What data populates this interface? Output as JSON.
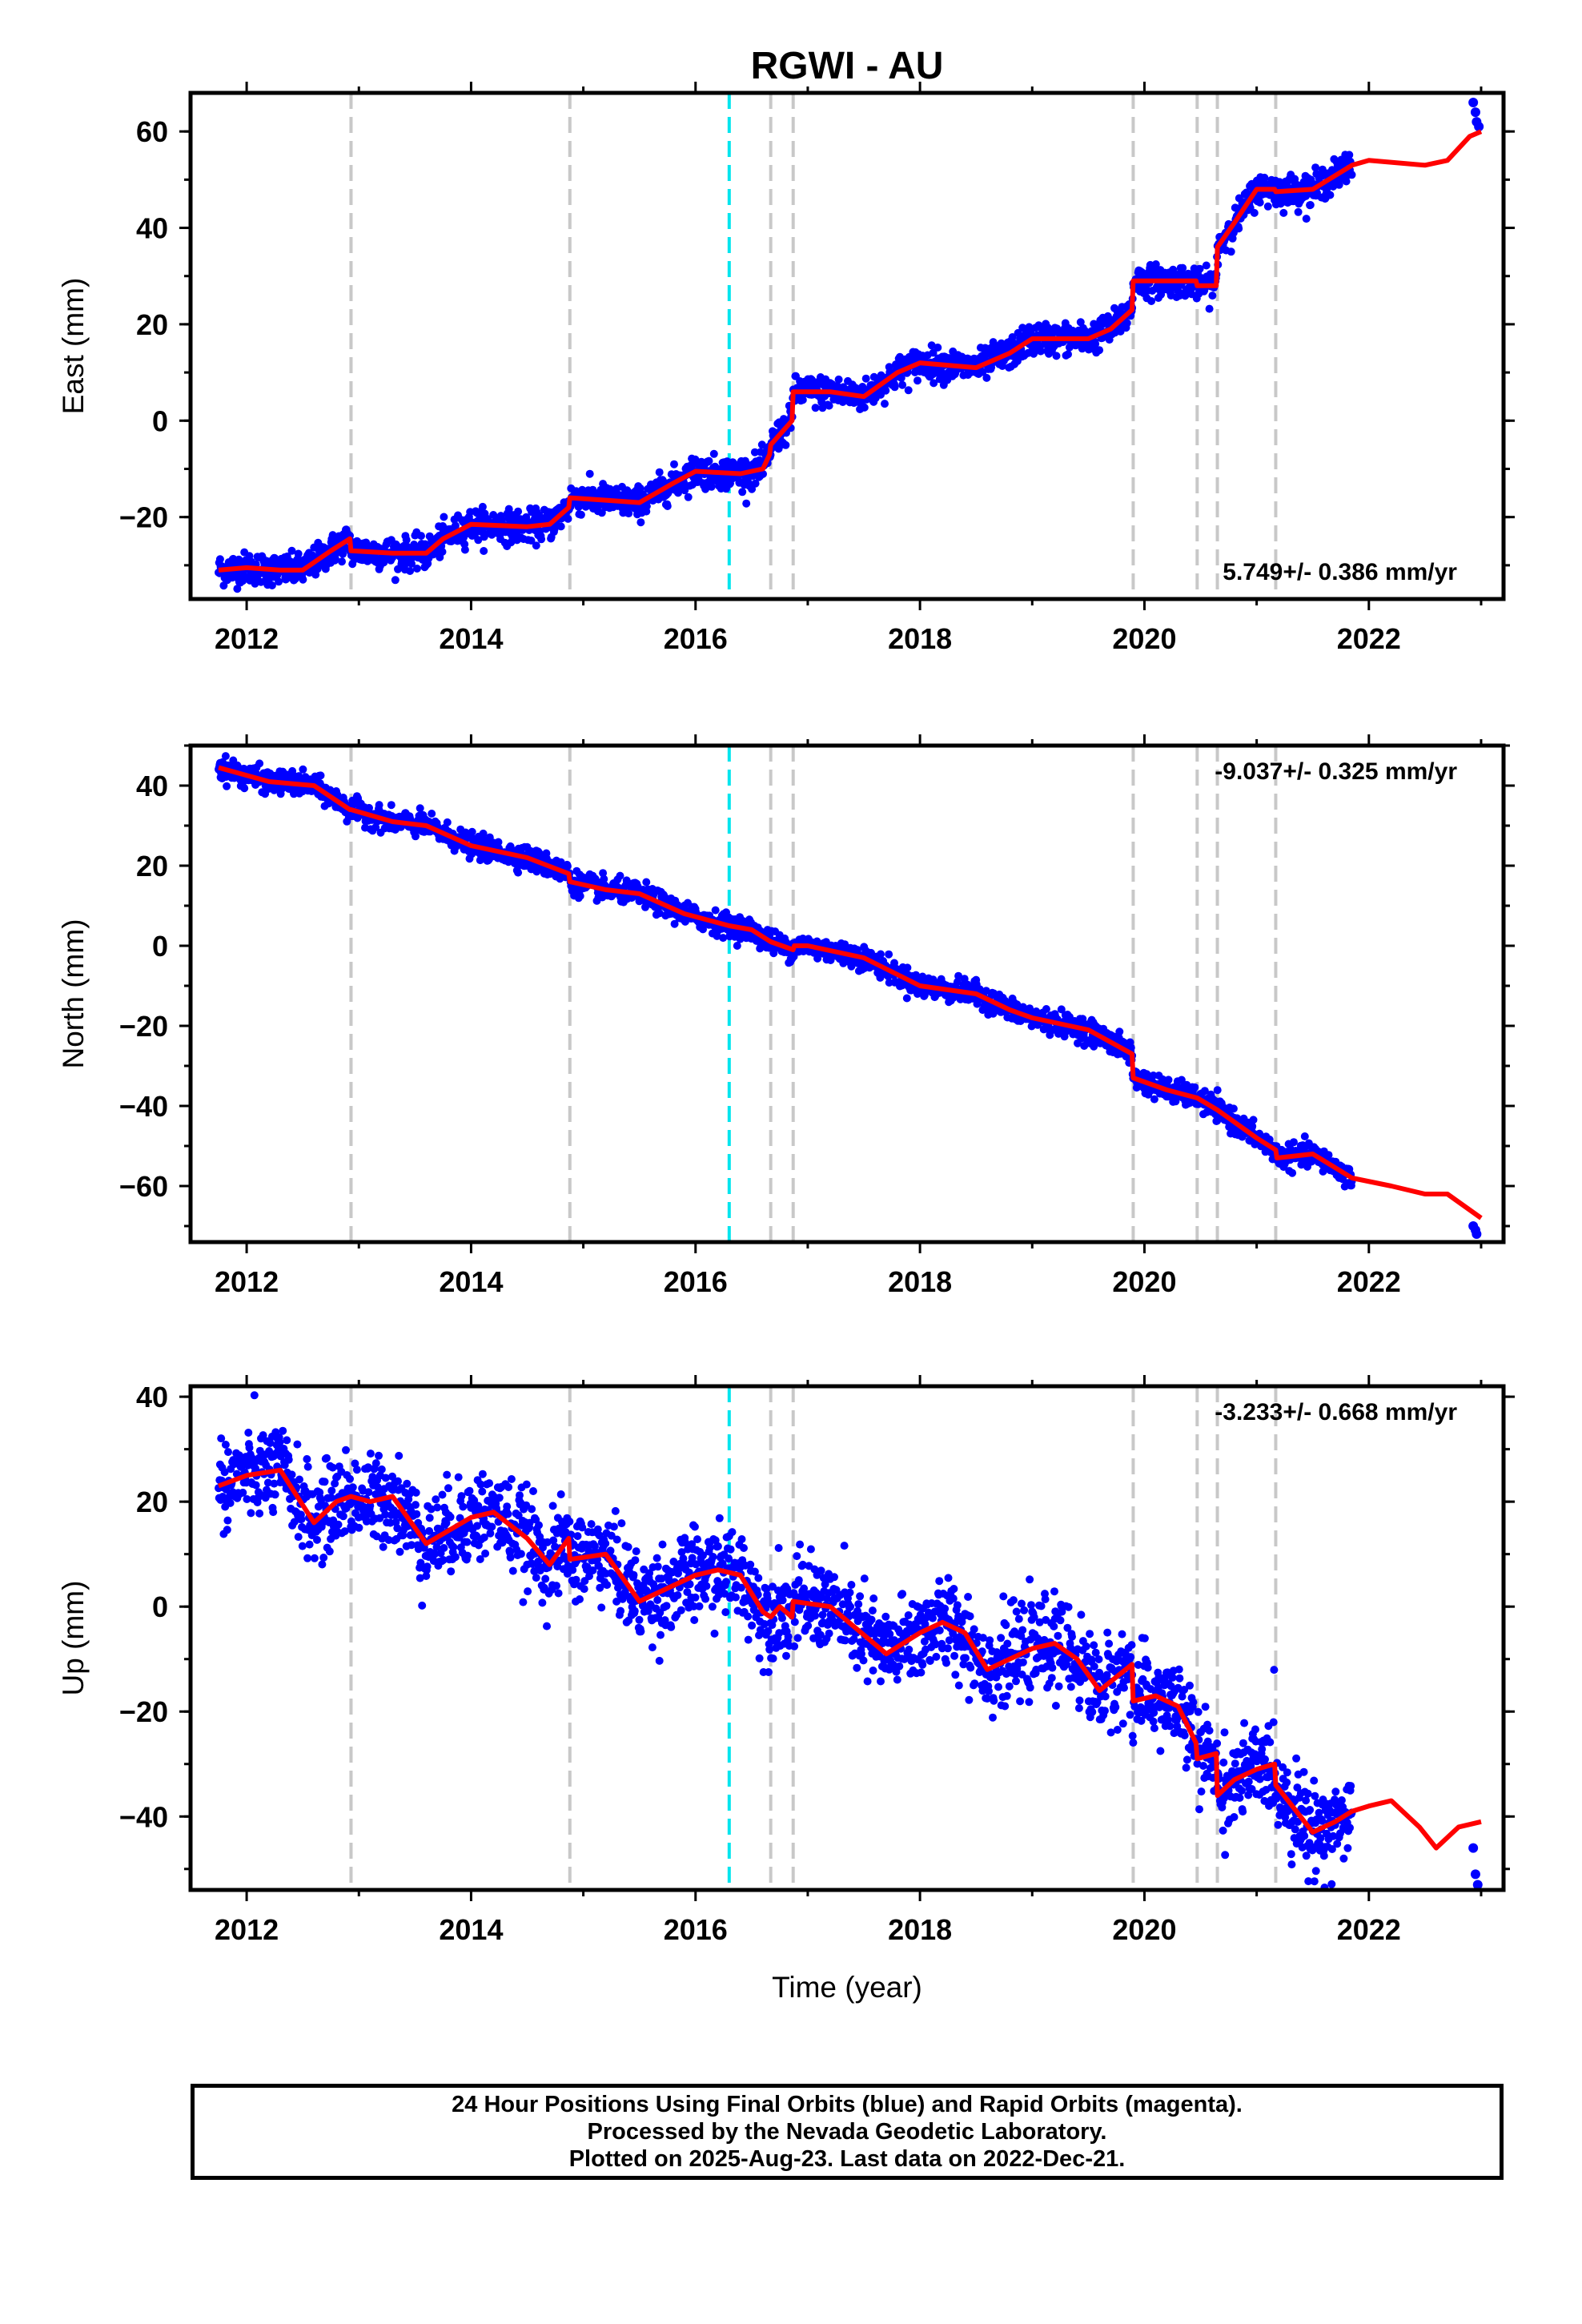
{
  "chart_data": {
    "type": "scatter",
    "title": "RGWI - AU",
    "xlabel": "Time (year)",
    "xlim": [
      2011.5,
      2023.2
    ],
    "xticks": [
      2012,
      2014,
      2016,
      2018,
      2020,
      2022
    ],
    "colors": {
      "data": "#0000ff",
      "model": "#ff0000",
      "marker": "#c8c8c8",
      "marker_highlight": "#00e5ee"
    },
    "event_lines": [
      2012.93,
      2014.88,
      2016.3,
      2016.67,
      2016.87,
      2019.9,
      2020.47,
      2020.65,
      2021.17
    ],
    "highlight_event": 2016.3,
    "data_gap": [
      2021.85,
      2022.9
    ],
    "panels": [
      {
        "component": "east",
        "ylabel": "East (mm)",
        "ylim": [
          -37,
          68
        ],
        "yticks": [
          -20,
          0,
          20,
          40,
          60
        ],
        "rate": "5.749+/- 0.386 mm/yr",
        "rate_position": "bottom-right",
        "scatter_noise": 1.6,
        "model_line": [
          [
            2011.75,
            -31
          ],
          [
            2012.0,
            -30.5
          ],
          [
            2012.3,
            -31
          ],
          [
            2012.5,
            -31
          ],
          [
            2012.75,
            -27
          ],
          [
            2012.92,
            -24.5
          ],
          [
            2012.93,
            -27
          ],
          [
            2013.3,
            -27.5
          ],
          [
            2013.6,
            -27.5
          ],
          [
            2013.75,
            -24.5
          ],
          [
            2014.0,
            -21.5
          ],
          [
            2014.5,
            -22
          ],
          [
            2014.7,
            -21.5
          ],
          [
            2014.87,
            -18
          ],
          [
            2014.88,
            -16
          ],
          [
            2015.2,
            -16.5
          ],
          [
            2015.5,
            -17
          ],
          [
            2015.8,
            -13
          ],
          [
            2016.0,
            -10.5
          ],
          [
            2016.4,
            -11
          ],
          [
            2016.6,
            -10
          ],
          [
            2016.66,
            -7
          ],
          [
            2016.67,
            -5
          ],
          [
            2016.86,
            0
          ],
          [
            2016.87,
            6
          ],
          [
            2017.2,
            6
          ],
          [
            2017.5,
            5
          ],
          [
            2017.8,
            10
          ],
          [
            2018.0,
            12
          ],
          [
            2018.5,
            11
          ],
          [
            2018.8,
            14
          ],
          [
            2019.0,
            17
          ],
          [
            2019.5,
            17
          ],
          [
            2019.7,
            19
          ],
          [
            2019.89,
            23
          ],
          [
            2019.9,
            29
          ],
          [
            2020.46,
            29
          ],
          [
            2020.47,
            28
          ],
          [
            2020.64,
            28
          ],
          [
            2020.65,
            36
          ],
          [
            2020.8,
            41
          ],
          [
            2021.0,
            48
          ],
          [
            2021.16,
            48
          ],
          [
            2021.17,
            47.5
          ],
          [
            2021.5,
            48
          ],
          [
            2021.85,
            53
          ],
          [
            2022.0,
            54
          ],
          [
            2022.5,
            53
          ],
          [
            2022.7,
            54
          ],
          [
            2022.9,
            59
          ],
          [
            2023.0,
            60
          ]
        ],
        "rapid_points": [
          [
            2022.93,
            66
          ],
          [
            2022.95,
            64
          ],
          [
            2022.96,
            62
          ],
          [
            2022.98,
            61
          ]
        ]
      },
      {
        "component": "north",
        "ylabel": "North (mm)",
        "ylim": [
          -74,
          50
        ],
        "yticks": [
          -60,
          -40,
          -20,
          0,
          20,
          40
        ],
        "rate": "-9.037+/- 0.325 mm/yr",
        "rate_position": "top-right",
        "scatter_noise": 1.4,
        "model_line": [
          [
            2011.75,
            44.5
          ],
          [
            2012.2,
            41
          ],
          [
            2012.6,
            40
          ],
          [
            2012.92,
            34
          ],
          [
            2012.93,
            34
          ],
          [
            2013.3,
            31
          ],
          [
            2013.6,
            30
          ],
          [
            2014.0,
            25
          ],
          [
            2014.5,
            22
          ],
          [
            2014.87,
            18
          ],
          [
            2014.88,
            16
          ],
          [
            2015.2,
            14
          ],
          [
            2015.5,
            13
          ],
          [
            2015.9,
            8
          ],
          [
            2016.3,
            5
          ],
          [
            2016.5,
            4
          ],
          [
            2016.67,
            1
          ],
          [
            2016.87,
            -1
          ],
          [
            2016.88,
            0
          ],
          [
            2017.0,
            0
          ],
          [
            2017.5,
            -3
          ],
          [
            2018.0,
            -10
          ],
          [
            2018.5,
            -12
          ],
          [
            2018.8,
            -16
          ],
          [
            2019.0,
            -18
          ],
          [
            2019.5,
            -21
          ],
          [
            2019.89,
            -27
          ],
          [
            2019.9,
            -33
          ],
          [
            2020.2,
            -36
          ],
          [
            2020.47,
            -38
          ],
          [
            2020.65,
            -41
          ],
          [
            2021.0,
            -48
          ],
          [
            2021.17,
            -51
          ],
          [
            2021.18,
            -53
          ],
          [
            2021.5,
            -52
          ],
          [
            2021.85,
            -58
          ],
          [
            2022.2,
            -60
          ],
          [
            2022.5,
            -62
          ],
          [
            2022.7,
            -62
          ],
          [
            2023.0,
            -68
          ]
        ],
        "rapid_points": [
          [
            2022.93,
            -70
          ],
          [
            2022.95,
            -71
          ],
          [
            2022.96,
            -72
          ]
        ]
      },
      {
        "component": "up",
        "ylabel": "Up (mm)",
        "ylim": [
          -54,
          42
        ],
        "yticks": [
          -40,
          -20,
          0,
          20,
          40
        ],
        "rate": "-3.233+/- 0.668 mm/yr",
        "rate_position": "top-right",
        "scatter_noise": 4.2,
        "model_line": [
          [
            2011.75,
            23
          ],
          [
            2012.0,
            25
          ],
          [
            2012.3,
            26
          ],
          [
            2012.6,
            16
          ],
          [
            2012.8,
            20
          ],
          [
            2012.93,
            21
          ],
          [
            2013.1,
            20
          ],
          [
            2013.3,
            21
          ],
          [
            2013.6,
            12
          ],
          [
            2014.0,
            17
          ],
          [
            2014.2,
            18
          ],
          [
            2014.5,
            13
          ],
          [
            2014.7,
            8
          ],
          [
            2014.87,
            13
          ],
          [
            2014.88,
            9
          ],
          [
            2015.2,
            10
          ],
          [
            2015.5,
            1
          ],
          [
            2015.8,
            4
          ],
          [
            2016.0,
            6
          ],
          [
            2016.2,
            7
          ],
          [
            2016.4,
            6
          ],
          [
            2016.6,
            -1
          ],
          [
            2016.67,
            -2
          ],
          [
            2016.75,
            0
          ],
          [
            2016.86,
            -2
          ],
          [
            2016.87,
            1
          ],
          [
            2017.2,
            0
          ],
          [
            2017.7,
            -9
          ],
          [
            2018.0,
            -5
          ],
          [
            2018.2,
            -3
          ],
          [
            2018.4,
            -5
          ],
          [
            2018.6,
            -12
          ],
          [
            2018.8,
            -10
          ],
          [
            2019.0,
            -8
          ],
          [
            2019.2,
            -7
          ],
          [
            2019.4,
            -10
          ],
          [
            2019.6,
            -16
          ],
          [
            2019.89,
            -11
          ],
          [
            2019.9,
            -18
          ],
          [
            2020.1,
            -17
          ],
          [
            2020.3,
            -19
          ],
          [
            2020.46,
            -26
          ],
          [
            2020.47,
            -29
          ],
          [
            2020.64,
            -28
          ],
          [
            2020.65,
            -36
          ],
          [
            2020.8,
            -33
          ],
          [
            2021.0,
            -31
          ],
          [
            2021.16,
            -30
          ],
          [
            2021.17,
            -34
          ],
          [
            2021.5,
            -43
          ],
          [
            2021.7,
            -41
          ],
          [
            2021.85,
            -39
          ],
          [
            2022.0,
            -38
          ],
          [
            2022.2,
            -37
          ],
          [
            2022.45,
            -42
          ],
          [
            2022.6,
            -46
          ],
          [
            2022.8,
            -42
          ],
          [
            2023.0,
            -41
          ]
        ],
        "rapid_points": [
          [
            2022.93,
            -46
          ],
          [
            2022.95,
            -51
          ],
          [
            2022.97,
            -53
          ]
        ]
      }
    ]
  },
  "caption": {
    "line1": "24 Hour Positions Using Final Orbits (blue) and Rapid Orbits (magenta).",
    "line2": "Processed by the Nevada Geodetic Laboratory.",
    "line3": "Plotted on 2025-Aug-23. Last data on 2022-Dec-21."
  }
}
